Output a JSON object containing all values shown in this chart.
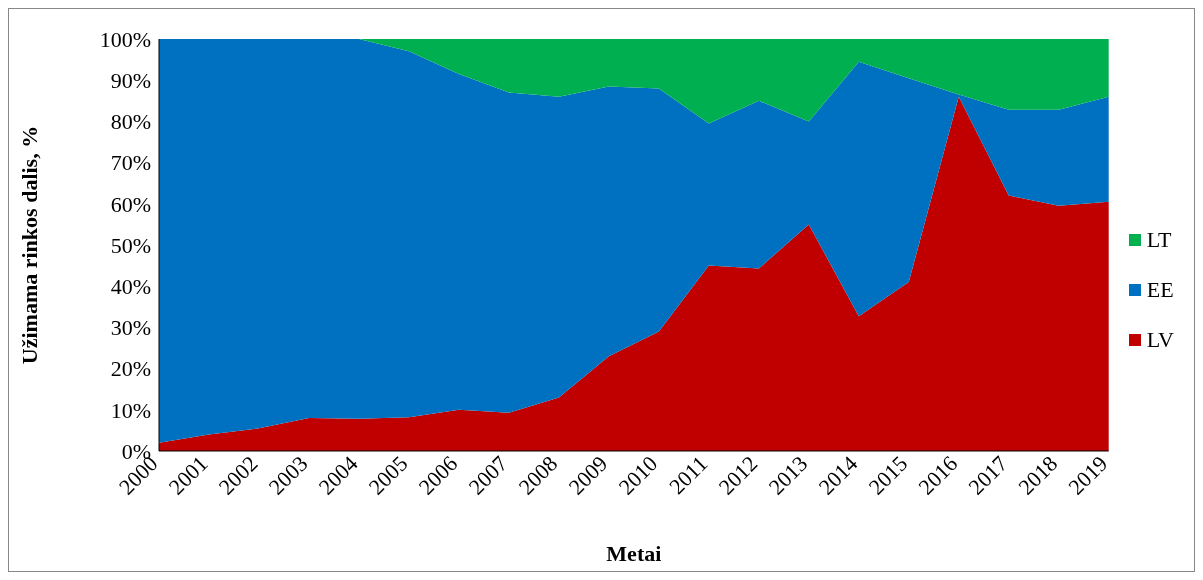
{
  "chart_data": {
    "type": "area",
    "stacked": true,
    "xlabel": "Metai",
    "ylabel": "Užimama rinkos dalis, %",
    "categories": [
      "2000",
      "2001",
      "2002",
      "2003",
      "2004",
      "2005",
      "2006",
      "2007",
      "2008",
      "2009",
      "2010",
      "2011",
      "2012",
      "2013",
      "2014",
      "2015",
      "2016",
      "2017",
      "2018",
      "2019"
    ],
    "series": [
      {
        "name": "LV",
        "color": "#c00000",
        "values": [
          2,
          4,
          5.5,
          8,
          7.8,
          8.2,
          10,
          9.3,
          13,
          23,
          29,
          45,
          44.3,
          55,
          32.7,
          41,
          86,
          62,
          59.5,
          60.5
        ]
      },
      {
        "name": "EE",
        "color": "#0070c0",
        "values": [
          98,
          96,
          94.5,
          92,
          92.2,
          88.8,
          81.5,
          77.7,
          73,
          65.5,
          59,
          34.5,
          40.7,
          25,
          61.8,
          49.5,
          0.5,
          20.8,
          23.3,
          25.5
        ]
      },
      {
        "name": "LT",
        "color": "#00b050",
        "values": [
          0,
          0,
          0,
          0,
          0,
          3,
          8.5,
          13,
          14,
          11.5,
          12,
          20.5,
          15,
          20,
          5.5,
          9.5,
          13.5,
          17.2,
          17.2,
          14
        ]
      }
    ],
    "ylim": [
      0,
      100
    ],
    "yticks": [
      {
        "value": 0,
        "label": "0%"
      },
      {
        "value": 10,
        "label": "10%"
      },
      {
        "value": 20,
        "label": "20%"
      },
      {
        "value": 30,
        "label": "30%"
      },
      {
        "value": 40,
        "label": "40%"
      },
      {
        "value": 50,
        "label": "50%"
      },
      {
        "value": 60,
        "label": "60%"
      },
      {
        "value": 70,
        "label": "70%"
      },
      {
        "value": 80,
        "label": "80%"
      },
      {
        "value": 90,
        "label": "90%"
      },
      {
        "value": 100,
        "label": "100%"
      }
    ],
    "grid": false,
    "legend": "right"
  }
}
